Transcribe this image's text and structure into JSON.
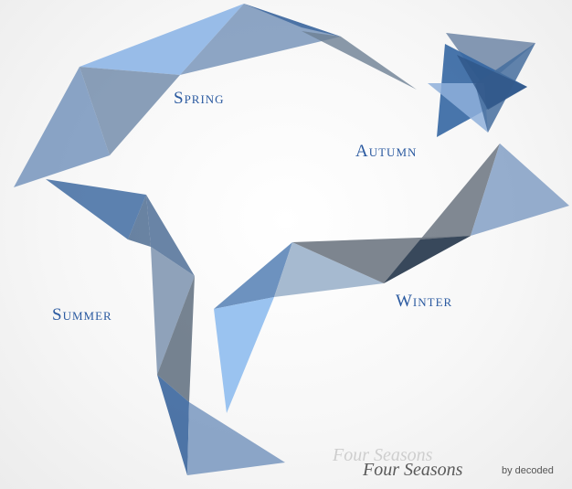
{
  "colors": {
    "label": "#2b5aa0",
    "ghost_text": "#c8c8c8",
    "main_text": "#5a5a5a",
    "byline_text": "#555555"
  },
  "seasons": {
    "spring": "Spring",
    "autumn": "Autumn",
    "winter": "Winter",
    "summer": "Summer"
  },
  "brand": {
    "title_ghost": "Four Seasons",
    "title": "Four Seasons",
    "byline": "by decoded"
  }
}
